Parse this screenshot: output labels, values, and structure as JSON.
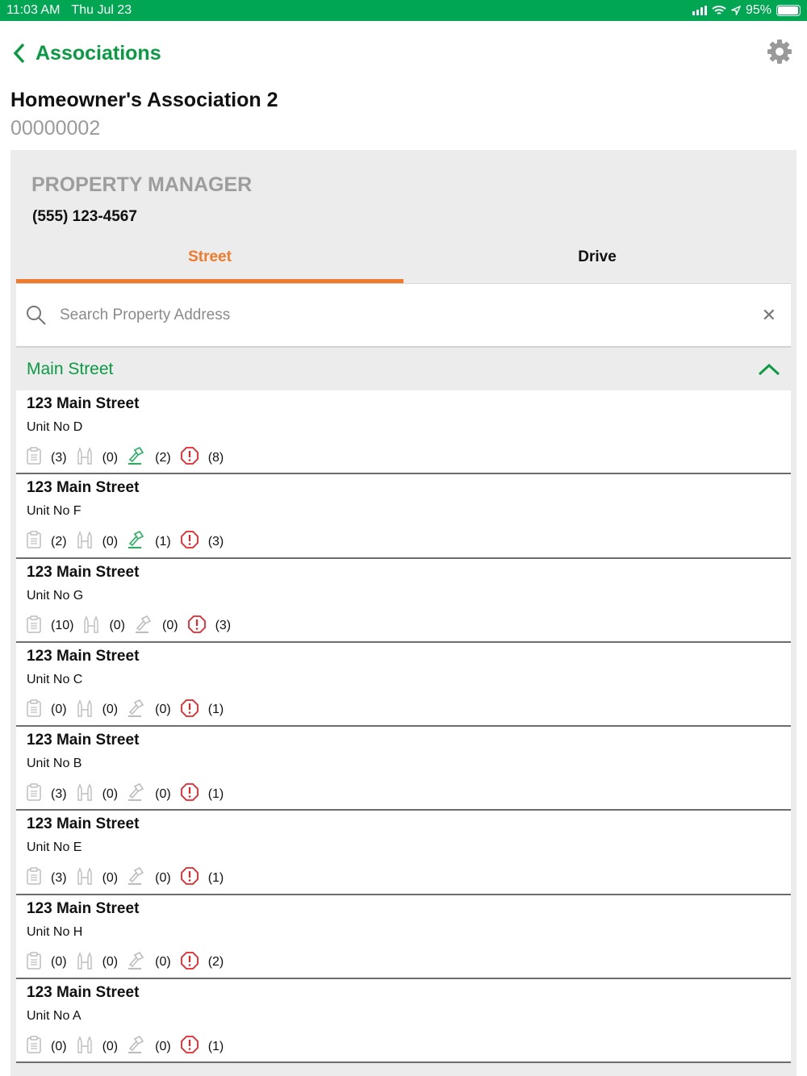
{
  "status_bar": {
    "time": "11:03 AM",
    "date": "Thu Jul 23",
    "battery": "95%",
    "battery_level": 0.95
  },
  "nav": {
    "back_label": "Associations",
    "settings_icon": "gear-icon"
  },
  "association": {
    "name": "Homeowner's Association 2",
    "code": "00000002"
  },
  "manager": {
    "label": "PROPERTY MANAGER",
    "phone": "(555) 123-4567"
  },
  "tabs": [
    {
      "label": "Street",
      "active": true
    },
    {
      "label": "Drive",
      "active": false
    }
  ],
  "search": {
    "placeholder": "Search Property Address",
    "value": ""
  },
  "group": {
    "label": "Main Street",
    "expanded": true
  },
  "colors": {
    "brand": "#00a651",
    "accent": "#f07a2a",
    "alert": "#e8242b",
    "inactive_icon": "#bdbdbd"
  },
  "properties": [
    {
      "address": "123 Main Street",
      "unit": "Unit No D",
      "notes": "(3)",
      "bottles": "(0)",
      "violations": "(2)",
      "alerts": "(8)",
      "violation_active": true
    },
    {
      "address": "123 Main Street",
      "unit": "Unit No F",
      "notes": "(2)",
      "bottles": "(0)",
      "violations": "(1)",
      "alerts": "(3)",
      "violation_active": true
    },
    {
      "address": "123 Main Street",
      "unit": "Unit No G",
      "notes": "(10)",
      "bottles": "(0)",
      "violations": "(0)",
      "alerts": "(3)",
      "violation_active": false
    },
    {
      "address": "123 Main Street",
      "unit": "Unit No C",
      "notes": "(0)",
      "bottles": "(0)",
      "violations": "(0)",
      "alerts": "(1)",
      "violation_active": false
    },
    {
      "address": "123 Main Street",
      "unit": "Unit No B",
      "notes": "(3)",
      "bottles": "(0)",
      "violations": "(0)",
      "alerts": "(1)",
      "violation_active": false
    },
    {
      "address": "123 Main Street",
      "unit": "Unit No E",
      "notes": "(3)",
      "bottles": "(0)",
      "violations": "(0)",
      "alerts": "(1)",
      "violation_active": false
    },
    {
      "address": "123 Main Street",
      "unit": "Unit No H",
      "notes": "(0)",
      "bottles": "(0)",
      "violations": "(0)",
      "alerts": "(2)",
      "violation_active": false
    },
    {
      "address": "123 Main Street",
      "unit": "Unit No A",
      "notes": "(0)",
      "bottles": "(0)",
      "violations": "(0)",
      "alerts": "(1)",
      "violation_active": false
    }
  ]
}
